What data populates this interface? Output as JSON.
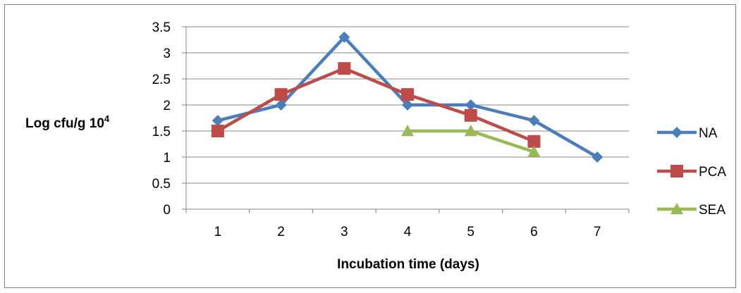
{
  "chart_data": {
    "type": "line",
    "title": "",
    "xlabel": "Incubation time (days)",
    "ylabel": "Log  cfu/g 10",
    "ylabel_superscript": "4",
    "categories": [
      "1",
      "2",
      "3",
      "4",
      "5",
      "6",
      "7"
    ],
    "ylim": [
      0,
      3.5
    ],
    "yticks": [
      "0",
      "0.5",
      "1",
      "1.5",
      "2",
      "2.5",
      "3",
      "3.5"
    ],
    "grid": true,
    "legend_position": "right",
    "series": [
      {
        "name": "NA",
        "color": "#4a7ebb",
        "marker": "diamond",
        "values": [
          1.7,
          2.0,
          3.3,
          2.0,
          2.0,
          1.7,
          1.0
        ]
      },
      {
        "name": "PCA",
        "color": "#be4b48",
        "marker": "square",
        "values": [
          1.5,
          2.2,
          2.7,
          2.2,
          1.8,
          1.3,
          null
        ]
      },
      {
        "name": "SEA",
        "color": "#98b954",
        "marker": "triangle",
        "values": [
          null,
          null,
          null,
          1.5,
          1.5,
          1.1,
          null
        ]
      }
    ]
  }
}
